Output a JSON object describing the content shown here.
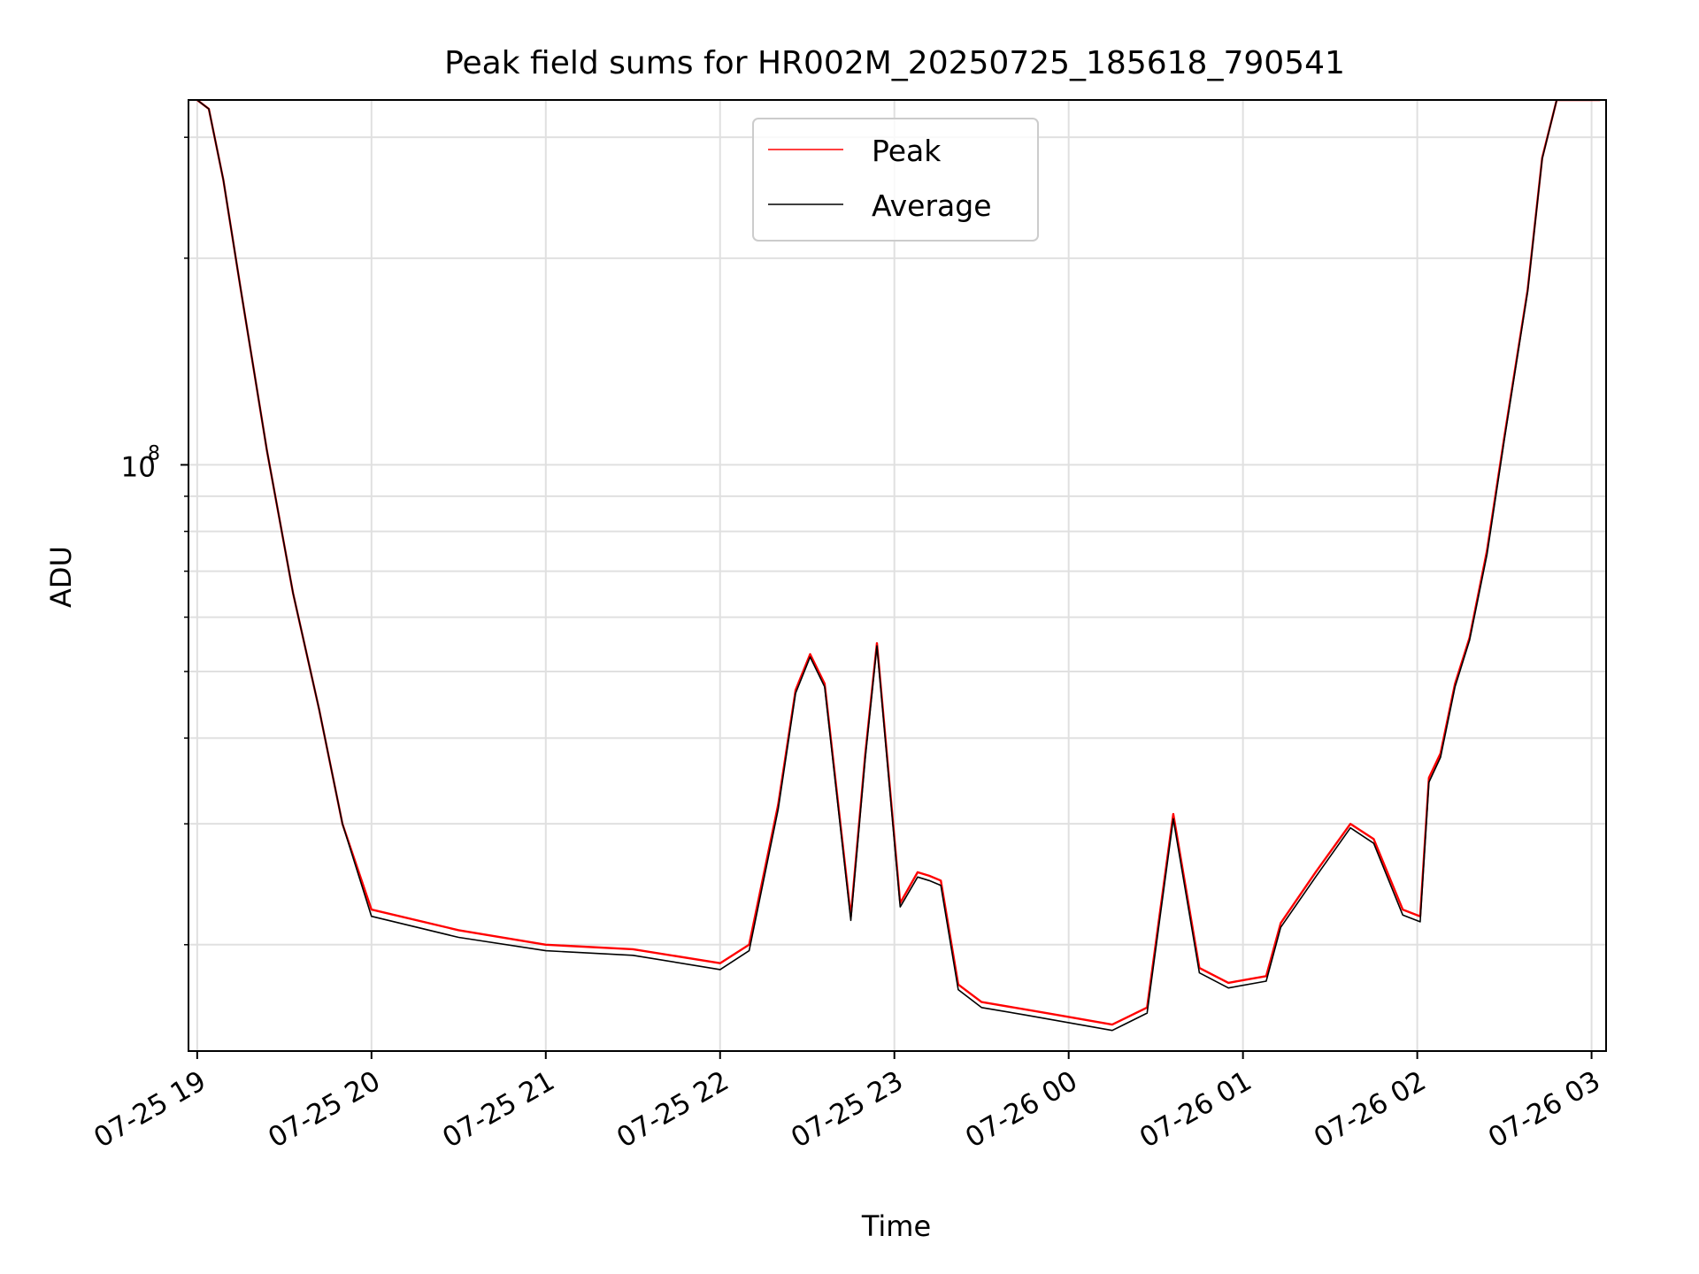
{
  "chart_data": {
    "type": "line",
    "title": "Peak field sums for HR002M_20250725_185618_790541",
    "xlabel": "Time",
    "ylabel": "ADU",
    "yscale": "log",
    "ylim": [
      14000000,
      340000000
    ],
    "xlim": [
      "2025-07-25 18:57",
      "2025-07-26 03:05"
    ],
    "grid": true,
    "legend_position": "top-center",
    "x_ticks": [
      "2025-07-25 19:00",
      "2025-07-25 20:00",
      "2025-07-25 21:00",
      "2025-07-25 22:00",
      "2025-07-25 23:00",
      "2025-07-26 00:00",
      "2025-07-26 01:00",
      "2025-07-26 02:00",
      "2025-07-26 03:00"
    ],
    "x_tick_labels": [
      "07-25 19",
      "07-25 20",
      "07-25 21",
      "07-25 22",
      "07-25 23",
      "07-26 00",
      "07-26 01",
      "07-26 02",
      "07-26 03"
    ],
    "y_major_tick": {
      "value": 100000000,
      "base": "10",
      "exponent": "8"
    },
    "y_minor_ticks": [
      20000000,
      30000000,
      40000000,
      50000000,
      60000000,
      70000000,
      80000000,
      90000000,
      200000000,
      300000000
    ],
    "series": [
      {
        "name": "Peak",
        "color": "#ff0000",
        "x": [
          "2025-07-25 19:00",
          "2025-07-25 19:04",
          "2025-07-25 19:09",
          "2025-07-25 19:15",
          "2025-07-25 19:24",
          "2025-07-25 19:33",
          "2025-07-25 19:42",
          "2025-07-25 19:50",
          "2025-07-25 20:00",
          "2025-07-25 20:30",
          "2025-07-25 21:00",
          "2025-07-25 21:30",
          "2025-07-25 22:00",
          "2025-07-25 22:10",
          "2025-07-25 22:20",
          "2025-07-25 22:26",
          "2025-07-25 22:31",
          "2025-07-25 22:36",
          "2025-07-25 22:45",
          "2025-07-25 22:50",
          "2025-07-25 22:54",
          "2025-07-25 23:02",
          "2025-07-25 23:08",
          "2025-07-25 23:12",
          "2025-07-25 23:16",
          "2025-07-25 23:22",
          "2025-07-25 23:30",
          "2025-07-25 23:45",
          "2025-07-26 00:00",
          "2025-07-26 00:15",
          "2025-07-26 00:27",
          "2025-07-26 00:36",
          "2025-07-26 00:45",
          "2025-07-26 00:55",
          "2025-07-26 01:08",
          "2025-07-26 01:13",
          "2025-07-26 01:25",
          "2025-07-26 01:37",
          "2025-07-26 01:45",
          "2025-07-26 01:55",
          "2025-07-26 02:01",
          "2025-07-26 02:04",
          "2025-07-26 02:08",
          "2025-07-26 02:13",
          "2025-07-26 02:18",
          "2025-07-26 02:24",
          "2025-07-26 02:30",
          "2025-07-26 02:38",
          "2025-07-26 02:43",
          "2025-07-26 02:48",
          "2025-07-26 03:03"
        ],
        "y": [
          340000000,
          330000000,
          260000000,
          180000000,
          105000000,
          65000000,
          44000000,
          30000000,
          22500000,
          21000000,
          20000000,
          19700000,
          18800000,
          20000000,
          32000000,
          47000000,
          53000000,
          48000000,
          22000000,
          38000000,
          55000000,
          23000000,
          25500000,
          25200000,
          24800000,
          17500000,
          16500000,
          16100000,
          15700000,
          15300000,
          16200000,
          31000000,
          18500000,
          17600000,
          18000000,
          21500000,
          25500000,
          30000000,
          28500000,
          22500000,
          22000000,
          35000000,
          38000000,
          48000000,
          56000000,
          75000000,
          110000000,
          180000000,
          280000000,
          340000000,
          340000000
        ]
      },
      {
        "name": "Average",
        "color": "#000000",
        "x": [
          "2025-07-25 19:00",
          "2025-07-25 19:04",
          "2025-07-25 19:09",
          "2025-07-25 19:15",
          "2025-07-25 19:24",
          "2025-07-25 19:33",
          "2025-07-25 19:42",
          "2025-07-25 19:50",
          "2025-07-25 20:00",
          "2025-07-25 20:30",
          "2025-07-25 21:00",
          "2025-07-25 21:30",
          "2025-07-25 22:00",
          "2025-07-25 22:10",
          "2025-07-25 22:20",
          "2025-07-25 22:26",
          "2025-07-25 22:31",
          "2025-07-25 22:36",
          "2025-07-25 22:45",
          "2025-07-25 22:50",
          "2025-07-25 22:54",
          "2025-07-25 23:02",
          "2025-07-25 23:08",
          "2025-07-25 23:12",
          "2025-07-25 23:16",
          "2025-07-25 23:22",
          "2025-07-25 23:30",
          "2025-07-25 23:45",
          "2025-07-26 00:00",
          "2025-07-26 00:15",
          "2025-07-26 00:27",
          "2025-07-26 00:36",
          "2025-07-26 00:45",
          "2025-07-26 00:55",
          "2025-07-26 01:08",
          "2025-07-26 01:13",
          "2025-07-26 01:25",
          "2025-07-26 01:37",
          "2025-07-26 01:45",
          "2025-07-26 01:55",
          "2025-07-26 02:01",
          "2025-07-26 02:04",
          "2025-07-26 02:08",
          "2025-07-26 02:13",
          "2025-07-26 02:18",
          "2025-07-26 02:24",
          "2025-07-26 02:30",
          "2025-07-26 02:38",
          "2025-07-26 02:43",
          "2025-07-26 02:48",
          "2025-07-26 03:03"
        ],
        "y": [
          340000000,
          330000000,
          260000000,
          180000000,
          105000000,
          65000000,
          44000000,
          30000000,
          22000000,
          20500000,
          19600000,
          19300000,
          18400000,
          19600000,
          31500000,
          46500000,
          52500000,
          47500000,
          21700000,
          37500000,
          54500000,
          22700000,
          25100000,
          24800000,
          24400000,
          17200000,
          16200000,
          15800000,
          15400000,
          15000000,
          15900000,
          30500000,
          18200000,
          17300000,
          17700000,
          21200000,
          25100000,
          29600000,
          28100000,
          22100000,
          21600000,
          34500000,
          37500000,
          47500000,
          55500000,
          74000000,
          109000000,
          179000000,
          279000000,
          340000000,
          340000000
        ]
      }
    ]
  }
}
